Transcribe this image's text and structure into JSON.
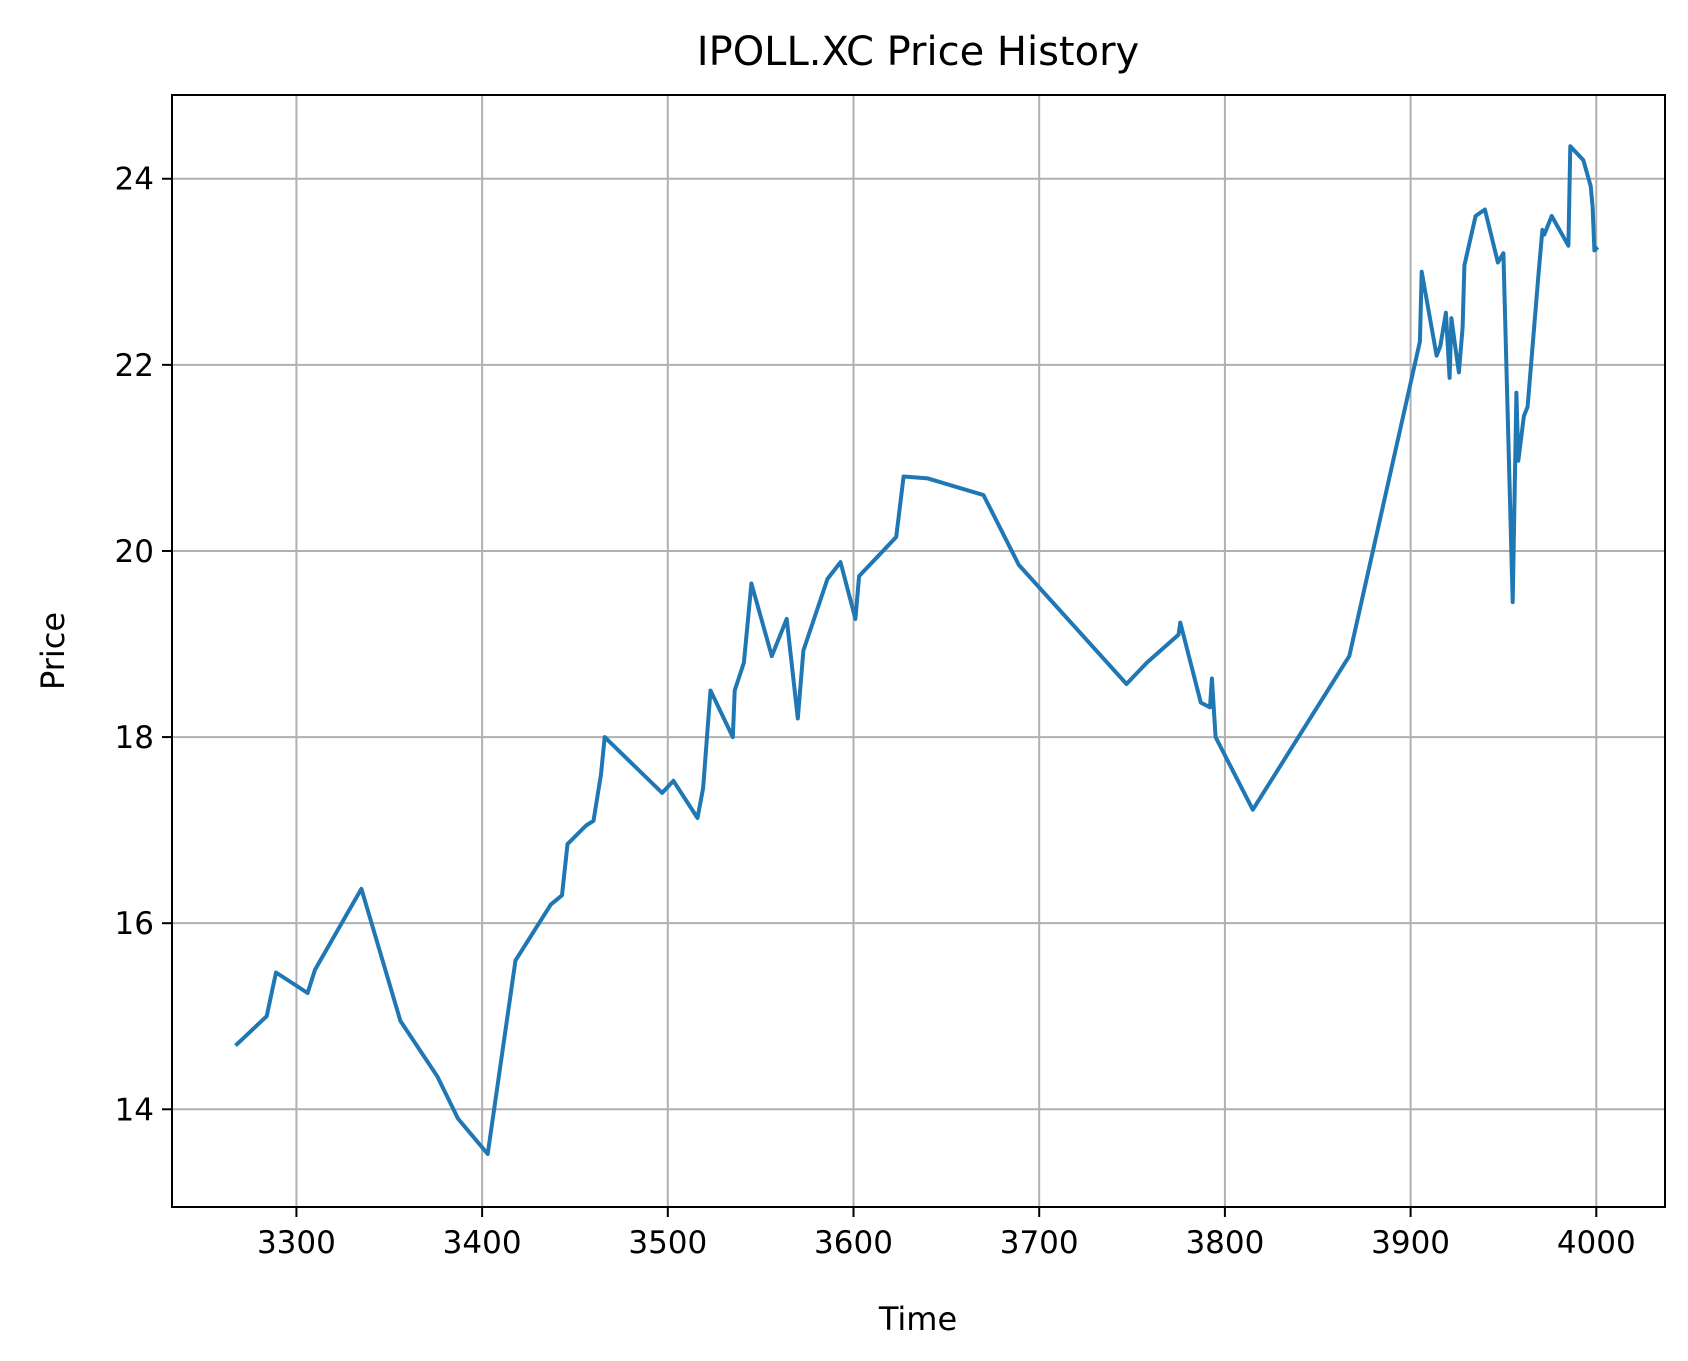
{
  "chart_data": {
    "type": "line",
    "title": "IPOLL.XC Price History",
    "xlabel": "Time",
    "ylabel": "Price",
    "xlim": [
      3233,
      4037
    ],
    "ylim": [
      12.95,
      24.9
    ],
    "xticks": [
      3300,
      3400,
      3500,
      3600,
      3700,
      3800,
      3900,
      4000
    ],
    "yticks": [
      14,
      16,
      18,
      20,
      22,
      24
    ],
    "grid": true,
    "legend": "none",
    "color": "#1f77b4",
    "series": [
      {
        "x": [
          3268,
          3284,
          3289,
          3306,
          3310,
          3335,
          3356,
          3376,
          3387,
          3403,
          3418,
          3437,
          3443,
          3446,
          3456,
          3460,
          3464,
          3466,
          3497,
          3503,
          3516,
          3519,
          3523,
          3535,
          3536,
          3541,
          3545,
          3556,
          3564,
          3570,
          3573,
          3586,
          3593,
          3601,
          3603,
          3623,
          3627,
          3640,
          3670,
          3689,
          3747,
          3758,
          3775,
          3776,
          3787,
          3792,
          3793,
          3795,
          3815,
          3867,
          3905,
          3906,
          3914,
          3916,
          3919,
          3921,
          3922,
          3924,
          3926,
          3928,
          3929,
          3935,
          3940,
          3947,
          3950,
          3955,
          3957,
          3958,
          3961,
          3963,
          3969,
          3971,
          3972,
          3976,
          3985,
          3986,
          3993,
          3997,
          3998,
          3999,
          4000
        ],
        "y": [
          14.7,
          15.0,
          15.47,
          15.25,
          15.5,
          16.37,
          14.95,
          14.35,
          13.9,
          13.52,
          15.6,
          16.2,
          16.3,
          16.85,
          17.05,
          17.1,
          17.6,
          18.0,
          17.4,
          17.53,
          17.13,
          17.45,
          18.5,
          18.0,
          18.5,
          18.8,
          19.65,
          18.87,
          19.27,
          18.2,
          18.93,
          19.7,
          19.88,
          19.27,
          19.73,
          20.15,
          20.8,
          20.78,
          20.6,
          19.85,
          18.57,
          18.8,
          19.1,
          19.23,
          18.37,
          18.32,
          18.63,
          18.0,
          17.22,
          18.87,
          22.25,
          23.0,
          22.1,
          22.2,
          22.56,
          21.86,
          22.5,
          22.2,
          21.92,
          22.4,
          23.07,
          23.6,
          23.67,
          23.1,
          23.2,
          19.45,
          21.7,
          20.97,
          21.45,
          21.55,
          23.0,
          23.45,
          23.4,
          23.6,
          23.28,
          24.35,
          24.2,
          23.92,
          23.7,
          23.23,
          23.25
        ]
      }
    ]
  }
}
